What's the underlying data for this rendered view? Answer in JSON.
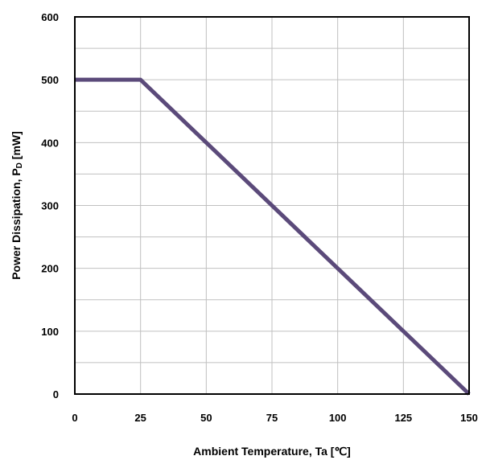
{
  "chart_data": {
    "type": "line",
    "title": "",
    "xlabel": "Ambient Temperature, Ta [℃]",
    "ylabel_main": "Power Dissipation, P",
    "ylabel_sub": "D",
    "ylabel_unit": " [mW]",
    "xlim": [
      0,
      150
    ],
    "ylim": [
      0,
      600
    ],
    "xticks": [
      0,
      25,
      50,
      75,
      100,
      125,
      150
    ],
    "yticks": [
      0,
      100,
      200,
      300,
      400,
      500,
      600
    ],
    "grid": {
      "x_step": 25,
      "y_step": 50
    },
    "legend": "none",
    "series": [
      {
        "x": [
          0,
          25,
          150
        ],
        "y": [
          500,
          500,
          0
        ],
        "color": "#5b4a7a"
      }
    ],
    "colors": {
      "grid": "#c0c0c0",
      "axes": "#000000"
    }
  }
}
